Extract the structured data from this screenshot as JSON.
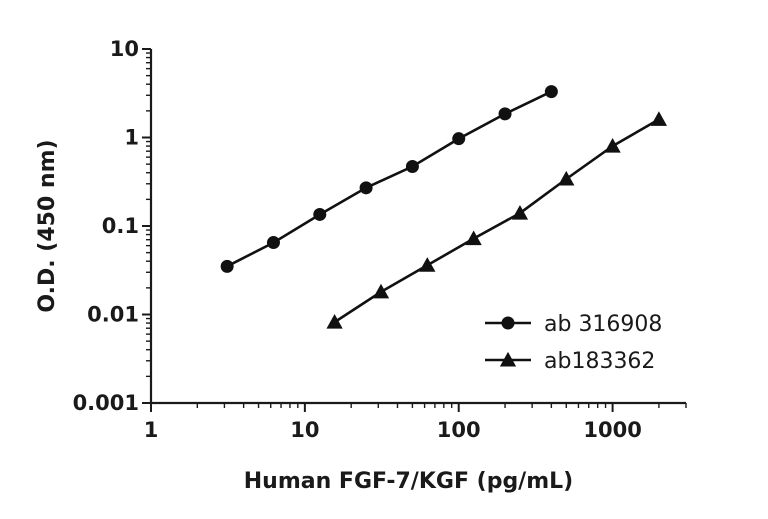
{
  "chart_data": {
    "type": "line",
    "title": "",
    "xlabel": "Human FGF-7/KGF (pg/mL)",
    "ylabel": "O.D. (450 nm)",
    "xscale": "log",
    "yscale": "log",
    "xlim": [
      1,
      3000
    ],
    "ylim": [
      0.001,
      10
    ],
    "xticks": [
      "1",
      "10",
      "100",
      "1000"
    ],
    "yticks": [
      "0.001",
      "0.01",
      "0.1",
      "1",
      "10"
    ],
    "grid": false,
    "legend_position": "bottom-right",
    "series": [
      {
        "name": "ab 316908",
        "marker": "circle",
        "color": "#111111",
        "x": [
          3.125,
          6.25,
          12.5,
          25,
          50,
          100,
          200,
          400
        ],
        "y": [
          0.035,
          0.065,
          0.135,
          0.27,
          0.47,
          0.97,
          1.85,
          3.3
        ]
      },
      {
        "name": "ab183362",
        "marker": "triangle",
        "color": "#111111",
        "x": [
          15.6,
          31.25,
          62.5,
          125,
          250,
          500,
          1000,
          2000
        ],
        "y": [
          0.0082,
          0.018,
          0.036,
          0.072,
          0.14,
          0.34,
          0.8,
          1.6
        ]
      }
    ]
  }
}
